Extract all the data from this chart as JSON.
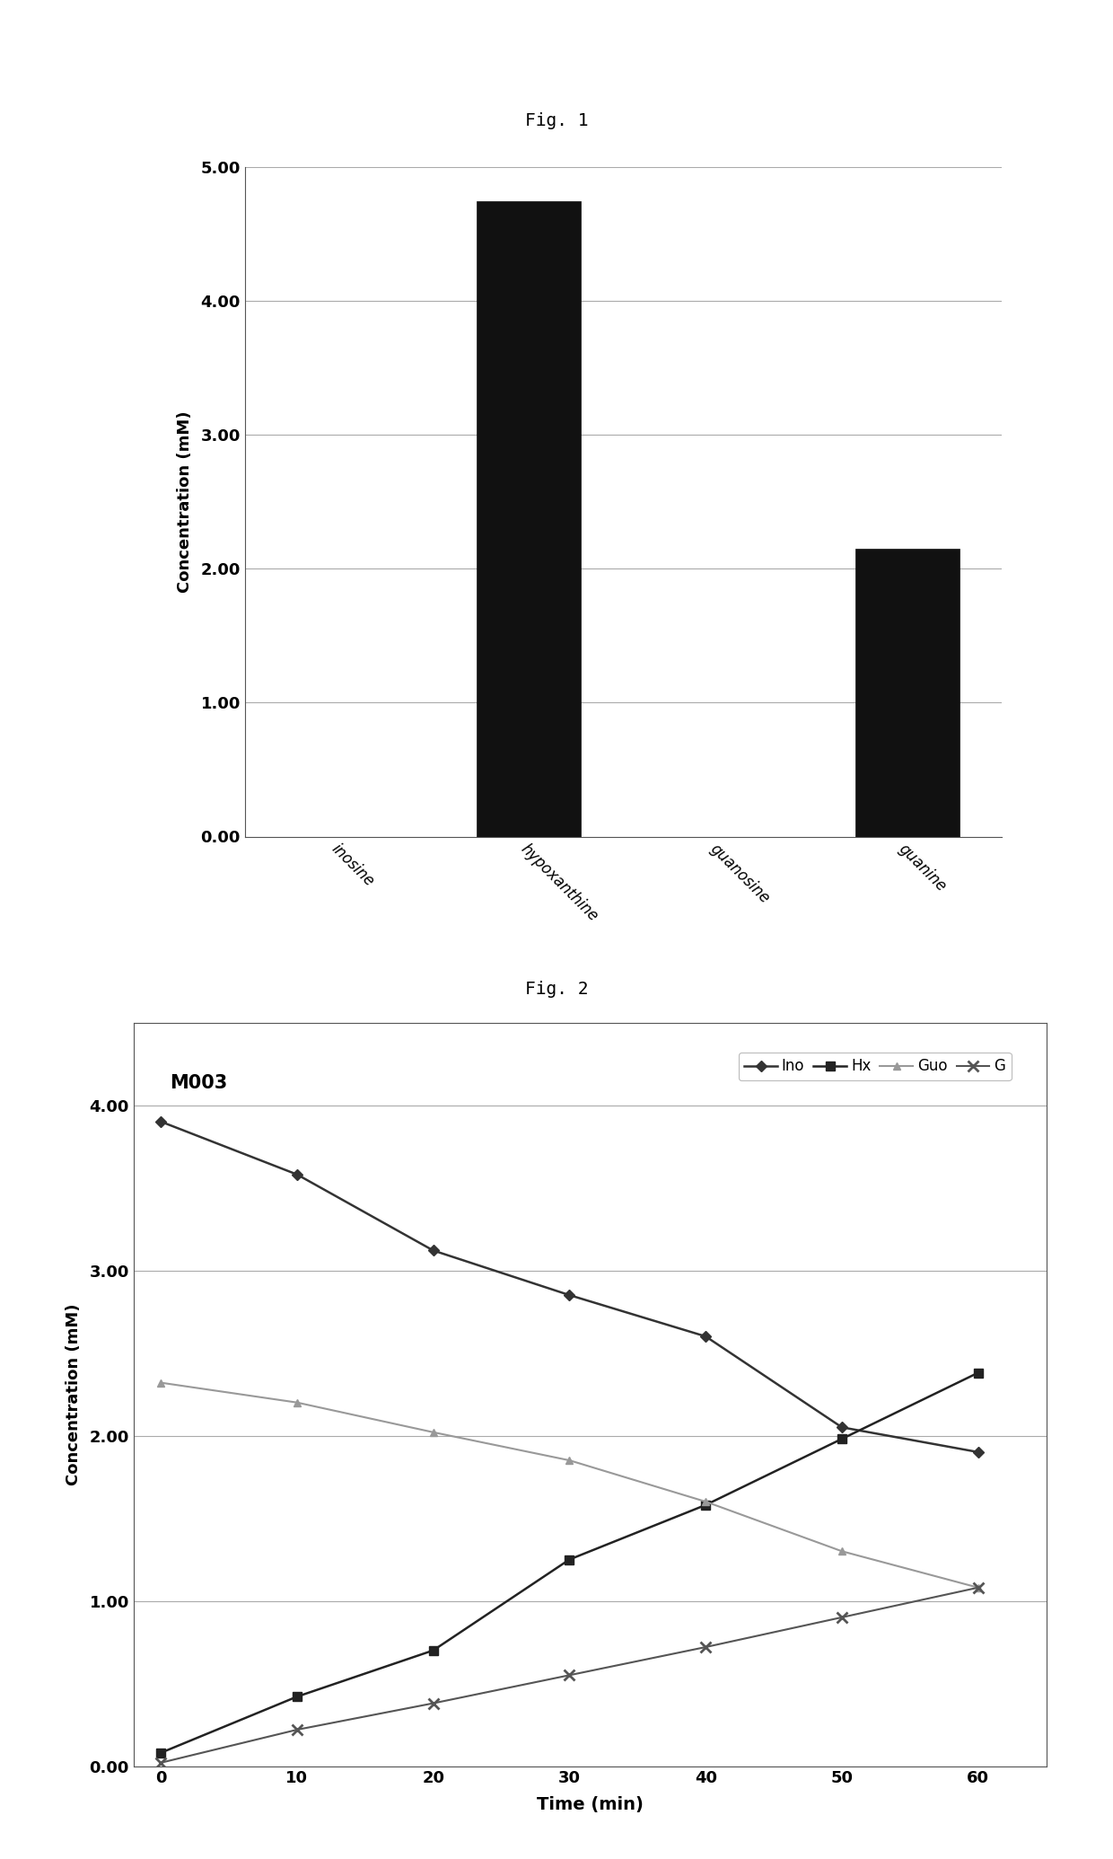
{
  "fig1": {
    "title": "Fig. 1",
    "categories": [
      "inosine",
      "hypoxanthine",
      "guanosine",
      "guanine"
    ],
    "values": [
      0.0,
      4.75,
      0.0,
      2.15
    ],
    "bar_color": "#111111",
    "ylabel": "Concentration (mM)",
    "ylim": [
      0,
      5.0
    ],
    "yticks": [
      0.0,
      1.0,
      2.0,
      3.0,
      4.0,
      5.0
    ],
    "ytick_labels": [
      "0.00",
      "1.00",
      "2.00",
      "3.00",
      "4.00",
      "5.00"
    ]
  },
  "fig2": {
    "title": "Fig. 2",
    "label": "M003",
    "xlabel": "Time (min)",
    "ylabel": "Concentration (mM)",
    "ylim": [
      0.0,
      4.5
    ],
    "yticks": [
      0.0,
      1.0,
      2.0,
      3.0,
      4.0
    ],
    "ytick_labels": [
      "0.00",
      "1.00",
      "2.00",
      "3.00",
      "4.00"
    ],
    "xticks": [
      0,
      10,
      20,
      30,
      40,
      50,
      60
    ],
    "time": [
      0,
      10,
      20,
      30,
      40,
      50,
      60
    ],
    "Ino": [
      3.9,
      3.58,
      3.12,
      2.85,
      2.6,
      2.05,
      1.9
    ],
    "Hx": [
      0.08,
      0.42,
      0.7,
      1.25,
      1.58,
      1.98,
      2.38
    ],
    "Guo": [
      2.32,
      2.2,
      2.02,
      1.85,
      1.6,
      1.3,
      1.08
    ],
    "G": [
      0.02,
      0.22,
      0.38,
      0.55,
      0.72,
      0.9,
      1.08
    ],
    "Ino_color": "#333333",
    "Hx_color": "#222222",
    "Guo_color": "#999999",
    "G_color": "#555555",
    "Ino_marker": "D",
    "Hx_marker": "s",
    "Guo_marker": "^",
    "G_marker": "x"
  }
}
